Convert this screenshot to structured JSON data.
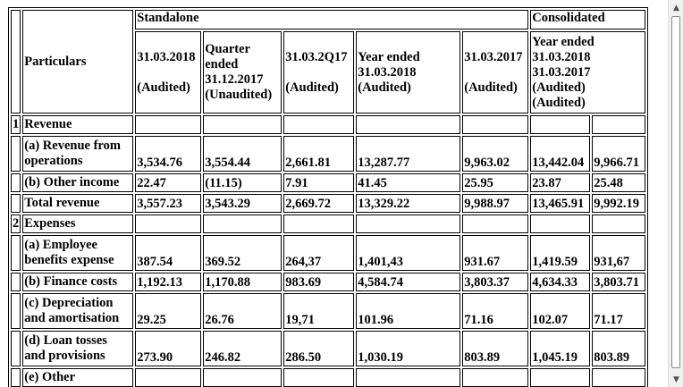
{
  "headers": {
    "particulars": "Particulars",
    "standalone": "Standalone",
    "consolidated": "Consolidated",
    "col1": [
      "31.03.2018",
      "",
      "(Audited)"
    ],
    "col2": [
      "Quarter",
      "ended",
      "31.12.2017",
      "(Unaudited)"
    ],
    "col3": [
      "31.03.2Q17",
      "",
      "(Audited)"
    ],
    "col4": [
      "Year ended",
      "31.03.2018",
      "(Audited)"
    ],
    "col5": [
      "31.03.2017",
      "",
      "(Audited)"
    ],
    "col6": [
      "Year ended",
      "31.03.2018",
      "31.03.2017",
      "(Audited)",
      "(Audited)"
    ]
  },
  "rows": [
    {
      "idx": "1",
      "label": [
        "Revenue"
      ],
      "values": [
        "",
        "",
        "",
        "",
        "",
        "",
        ""
      ]
    },
    {
      "idx": "",
      "label": [
        "(a) Revenue from",
        "operations"
      ],
      "values": [
        "3,534.76",
        "3,554.44",
        "2,661.81",
        "13,287.77",
        "9,963.02",
        "13,442.04",
        "9,966.71"
      ]
    },
    {
      "idx": "",
      "label": [
        "(b) Other income"
      ],
      "values": [
        "22.47",
        "(11.15)",
        "7.91",
        "41.45",
        "25.95",
        "23.87",
        "25.48"
      ]
    },
    {
      "idx": "",
      "label": [
        "Total revenue"
      ],
      "values": [
        "3,557.23",
        "3,543.29",
        "2,669.72",
        "13,329.22",
        "9,988.97",
        "13,465.91",
        "9,992.19"
      ]
    },
    {
      "idx": "2",
      "label": [
        "Expenses"
      ],
      "values": [
        "",
        "",
        "",
        "",
        "",
        "",
        ""
      ]
    },
    {
      "idx": "",
      "label": [
        "(a) Employee",
        "benefits expense"
      ],
      "values": [
        "387.54",
        "369.52",
        "264,37",
        "1,401,43",
        "931.67",
        "1,419.59",
        "931,67"
      ]
    },
    {
      "idx": "",
      "label": [
        "(b) Finance costs"
      ],
      "values": [
        "1,192.13",
        "1,170.88",
        "983.69",
        "4,584.74",
        "3,803.37",
        "4,634.33",
        "3,803.71"
      ]
    },
    {
      "idx": "",
      "label": [
        "(c) Depreciation",
        "and amortisation"
      ],
      "values": [
        "29.25",
        "26.76",
        "19,71",
        "101.96",
        "71.16",
        "102.07",
        "71.17"
      ]
    },
    {
      "idx": "",
      "label": [
        "(d) Loan tosses",
        "and provisions"
      ],
      "values": [
        "273.90",
        "246.82",
        "286.50",
        "1,030.19",
        "803.89",
        "1,045.19",
        "803.89"
      ]
    },
    {
      "idx": "",
      "label": [
        "(e) Other"
      ],
      "values": [
        "",
        "",
        "",
        "",
        "",
        "",
        ""
      ]
    }
  ],
  "scrollbar": {
    "up": "▲",
    "down": "▼"
  }
}
